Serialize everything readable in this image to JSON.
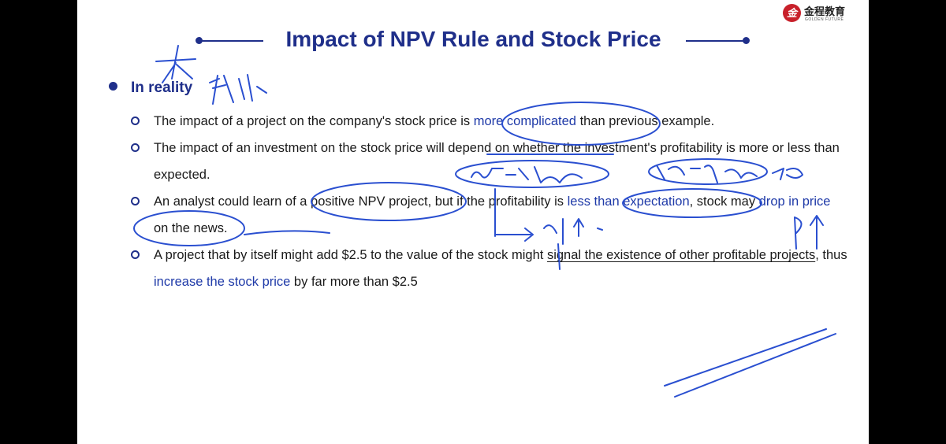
{
  "slide": {
    "title": "Impact of NPV Rule and Stock Price",
    "logo": {
      "mark": "金",
      "cn": "金程教育",
      "en": "GOLDEN FUTURE"
    },
    "heading": "In reality",
    "points": [
      {
        "before": "The impact of a project on the company's stock price is ",
        "highlight": "more complicated",
        "after": " than previous example."
      },
      {
        "text": "The impact of an investment on the stock price will depend on whether the investment's profitability is more or less than expected."
      },
      {
        "before": "An analyst could learn of a positive NPV project, but if the profitability is ",
        "highlight": "less than expectation",
        "after_a": ", stock may ",
        "highlight2": "drop in price",
        "after_b": " on the news."
      },
      {
        "before": "A project that by itself might add $2.5 to the value of the stock might ",
        "underline": "signal the existence of other profitable projects",
        "mid": ", thus ",
        "highlight": "increase the stock price",
        "after": " by far more than $2.5"
      }
    ]
  },
  "colors": {
    "title": "#1f2f8a",
    "highlight": "#1f3aa8",
    "ink": "#2a4fd0"
  }
}
